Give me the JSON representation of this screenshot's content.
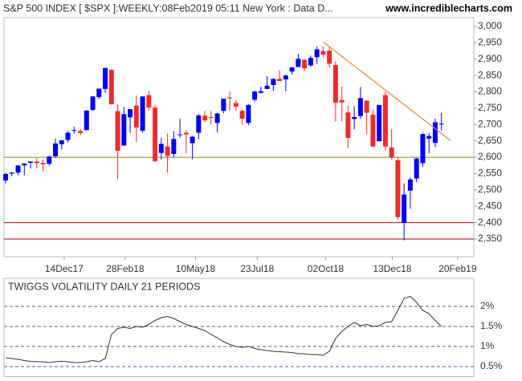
{
  "header": {
    "title": "S&P 500 INDEX [ $SPX ]:WEEKLY:08Feb2019 05:11 New York : Data D...",
    "site": "www.incrediblecharts.com"
  },
  "chart_data": [
    {
      "type": "candlestick",
      "x": [
        0,
        1,
        2,
        3,
        4,
        5,
        6,
        7,
        8,
        9,
        10,
        11,
        12,
        13,
        14,
        15,
        16,
        17,
        18,
        19,
        20,
        21,
        22,
        23,
        24,
        25,
        26,
        27,
        28,
        29,
        30,
        31,
        32,
        33,
        34,
        35,
        36,
        37,
        38,
        39,
        40,
        41,
        42,
        43,
        44,
        45,
        46,
        47,
        48,
        49,
        50,
        51,
        52,
        53,
        54,
        55,
        56,
        57,
        58,
        59,
        60,
        61,
        62,
        63,
        64,
        65,
        66,
        67,
        68,
        69,
        70
      ],
      "open": [
        2529,
        2550,
        2553,
        2575,
        2583,
        2587,
        2583,
        2580,
        2603,
        2640,
        2653,
        2682,
        2680,
        2683,
        2745,
        2784,
        2809,
        2867,
        2741,
        2636,
        2722,
        2758,
        2681,
        2790,
        2752,
        2613,
        2633,
        2610,
        2670,
        2675,
        2643,
        2675,
        2727,
        2723,
        2705,
        2742,
        2783,
        2766,
        2742,
        2705,
        2776,
        2797,
        2809,
        2821,
        2840,
        2838,
        2862,
        2876,
        2898,
        2881,
        2906,
        2925,
        2926,
        2882,
        2775,
        2737,
        2717,
        2726,
        2773,
        2730,
        2649,
        2790,
        2630,
        2591,
        2400,
        2498,
        2535,
        2582,
        2657,
        2644,
        2703
      ],
      "high": [
        2552,
        2555,
        2575,
        2582,
        2588,
        2597,
        2593,
        2605,
        2657,
        2652,
        2680,
        2694,
        2687,
        2743,
        2787,
        2808,
        2873,
        2870,
        2763,
        2754,
        2747,
        2789,
        2786,
        2802,
        2761,
        2660,
        2672,
        2680,
        2718,
        2683,
        2665,
        2732,
        2742,
        2742,
        2736,
        2779,
        2801,
        2774,
        2746,
        2763,
        2804,
        2816,
        2848,
        2841,
        2866,
        2853,
        2876,
        2916,
        2900,
        2911,
        2940,
        2939,
        2940,
        2894,
        2816,
        2758,
        2756,
        2815,
        2775,
        2746,
        2760,
        2800,
        2686,
        2601,
        2520,
        2538,
        2598,
        2675,
        2674,
        2718,
        2736
      ],
      "low": [
        2520,
        2542,
        2545,
        2545,
        2566,
        2566,
        2557,
        2575,
        2598,
        2624,
        2646,
        2672,
        2667,
        2683,
        2743,
        2778,
        2797,
        2762,
        2533,
        2635,
        2675,
        2647,
        2675,
        2742,
        2585,
        2593,
        2553,
        2600,
        2660,
        2612,
        2594,
        2655,
        2707,
        2700,
        2676,
        2735,
        2743,
        2742,
        2699,
        2698,
        2769,
        2795,
        2808,
        2803,
        2833,
        2802,
        2853,
        2876,
        2864,
        2877,
        2886,
        2905,
        2874,
        2710,
        2710,
        2628,
        2685,
        2718,
        2671,
        2631,
        2649,
        2621,
        2593,
        2409,
        2346,
        2443,
        2524,
        2570,
        2612,
        2631,
        2681
      ],
      "close": [
        2549,
        2553,
        2575,
        2581,
        2587,
        2582,
        2579,
        2602,
        2642,
        2652,
        2675,
        2683,
        2674,
        2743,
        2786,
        2810,
        2873,
        2762,
        2620,
        2732,
        2747,
        2691,
        2786,
        2752,
        2588,
        2641,
        2604,
        2656,
        2670,
        2670,
        2663,
        2728,
        2713,
        2721,
        2734,
        2779,
        2780,
        2755,
        2718,
        2760,
        2801,
        2802,
        2819,
        2840,
        2833,
        2850,
        2875,
        2901,
        2872,
        2904,
        2930,
        2914,
        2886,
        2767,
        2768,
        2659,
        2723,
        2781,
        2736,
        2633,
        2760,
        2633,
        2600,
        2417,
        2486,
        2532,
        2596,
        2671,
        2665,
        2707,
        2703
      ],
      "up_color": "#0000ff",
      "down_color": "#ee2b2b",
      "xlim": [
        -0.26,
        75.2
      ],
      "xticks": [
        {
          "value": 9.4,
          "label": "14Dec17"
        },
        {
          "value": 19.2,
          "label": "28Feb18"
        },
        {
          "value": 30.5,
          "label": "10May18"
        },
        {
          "value": 40.4,
          "label": "23Jul18"
        },
        {
          "value": 51.4,
          "label": "02Oct18"
        },
        {
          "value": 62.1,
          "label": "13Dec18"
        },
        {
          "value": 72.6,
          "label": "20Feb19"
        }
      ],
      "ylim": [
        2296,
        3027
      ],
      "yticks": [
        {
          "value": 2350,
          "label": "2,350"
        },
        {
          "value": 2400,
          "label": "2,400"
        },
        {
          "value": 2450,
          "label": "2,450"
        },
        {
          "value": 2500,
          "label": "2,500"
        },
        {
          "value": 2550,
          "label": "2,550"
        },
        {
          "value": 2600,
          "label": "2,600"
        },
        {
          "value": 2650,
          "label": "2,650"
        },
        {
          "value": 2700,
          "label": "2,700"
        },
        {
          "value": 2750,
          "label": "2,750"
        },
        {
          "value": 2800,
          "label": "2,800"
        },
        {
          "value": 2850,
          "label": "2,850"
        },
        {
          "value": 2900,
          "label": "2,900"
        },
        {
          "value": 2950,
          "label": "2,950"
        },
        {
          "value": 3000,
          "label": "3,000"
        }
      ],
      "hlines": [
        {
          "value": 2600,
          "color": "#8a8a00"
        },
        {
          "value": 2400,
          "color": "#b00000"
        },
        {
          "value": 2350,
          "color": "#b00000"
        }
      ],
      "trendline": {
        "x": [
          51,
          71.4
        ],
        "y": [
          2953,
          2652
        ],
        "color": "#e08a2a"
      }
    },
    {
      "type": "line",
      "title": "TWIGGS VOLATILITY DAILY 21 PERIODS",
      "x": [
        0,
        1,
        2,
        3,
        4,
        5,
        6,
        7,
        8,
        9,
        10,
        11,
        12,
        13,
        14,
        15,
        16,
        17,
        18,
        19,
        20,
        21,
        22,
        23,
        24,
        25,
        26,
        27,
        28,
        29,
        30,
        31,
        32,
        33,
        34,
        35,
        36,
        37,
        38,
        39,
        40,
        41,
        42,
        43,
        44,
        45,
        46,
        47,
        48,
        49,
        50,
        51,
        52,
        53,
        54,
        55,
        56,
        57,
        58,
        59,
        60,
        61,
        62,
        63,
        64,
        65,
        66,
        67,
        68,
        69,
        70
      ],
      "series": [
        {
          "name": "Twiggs Volatility",
          "color": "#333333",
          "values": [
            0.72,
            0.7,
            0.68,
            0.65,
            0.63,
            0.62,
            0.62,
            0.6,
            0.62,
            0.63,
            0.62,
            0.6,
            0.6,
            0.62,
            0.65,
            0.62,
            0.7,
            1.3,
            1.45,
            1.48,
            1.45,
            1.5,
            1.48,
            1.55,
            1.65,
            1.72,
            1.75,
            1.7,
            1.62,
            1.55,
            1.5,
            1.45,
            1.4,
            1.3,
            1.22,
            1.12,
            1.05,
            1.0,
            0.98,
            1.0,
            0.95,
            0.92,
            0.9,
            0.88,
            0.87,
            0.86,
            0.85,
            0.82,
            0.82,
            0.8,
            0.8,
            0.78,
            0.88,
            1.2,
            1.38,
            1.5,
            1.6,
            1.52,
            1.55,
            1.5,
            1.52,
            1.6,
            1.62,
            1.9,
            2.2,
            2.25,
            2.1,
            1.9,
            1.82,
            1.65,
            1.5
          ]
        }
      ],
      "xlim": [
        -0.26,
        75.2
      ],
      "ylim": [
        0.25,
        2.7
      ],
      "yticks": [
        {
          "value": 0.5,
          "label": "0.5%"
        },
        {
          "value": 1,
          "label": "1%"
        },
        {
          "value": 1.5,
          "label": "1.5%"
        },
        {
          "value": 2,
          "label": "2%"
        }
      ],
      "grid": true
    }
  ]
}
